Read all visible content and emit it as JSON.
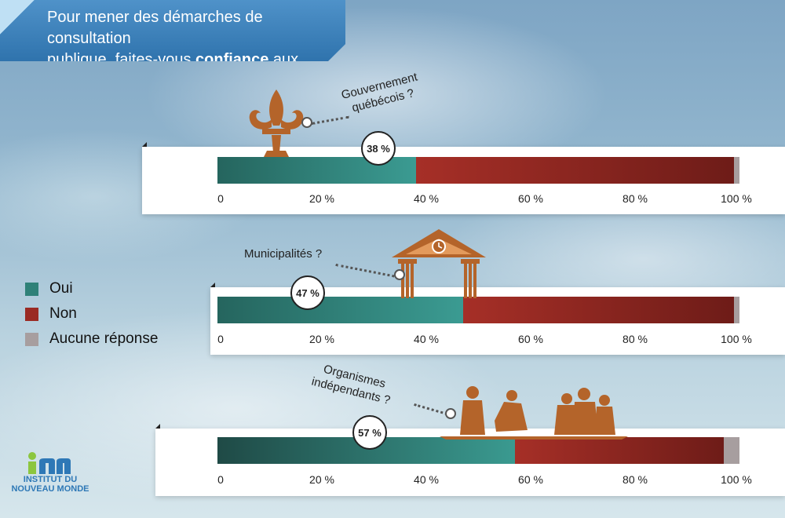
{
  "title": {
    "line1": "Pour mener des démarches de consultation",
    "line2_pre": "publique, faites-vous ",
    "line2_bold": "confiance",
    "line2_post": " aux..."
  },
  "legend": [
    {
      "label": "Oui",
      "color": "#2f8178"
    },
    {
      "label": "Non",
      "color": "#9a2b24"
    },
    {
      "label": "Aucune réponse",
      "color": "#a79e9f"
    }
  ],
  "ticks": [
    "0",
    "20 %",
    "40 %",
    "60 %",
    "80 %",
    "100 %"
  ],
  "chart_data": {
    "type": "bar",
    "orientation": "horizontal-stacked",
    "categories": [
      "Gouvernement québécois ?",
      "Municipalités ?",
      "Organismes indépendants ?"
    ],
    "series": [
      {
        "name": "Oui",
        "values": [
          38,
          47,
          57
        ]
      },
      {
        "name": "Non",
        "values": [
          61,
          52,
          40
        ]
      },
      {
        "name": "Aucune réponse",
        "values": [
          1,
          1,
          3
        ]
      }
    ],
    "data_labels": [
      "38 %",
      "47 %",
      "57 %"
    ],
    "xlim": [
      0,
      100
    ],
    "legend_position": "left"
  },
  "callouts": [
    {
      "line1": "Gouvernement",
      "line2": "québécois ?"
    },
    {
      "line1": "Municipalités ?",
      "line2": ""
    },
    {
      "line1": "Organismes",
      "line2": "indépendants ?"
    }
  ],
  "icons": [
    "fleur-de-lis-icon",
    "city-hall-icon",
    "people-icon"
  ],
  "logo": {
    "line1": "INSTITUT DU",
    "line2": "NOUVEAU MONDE"
  }
}
